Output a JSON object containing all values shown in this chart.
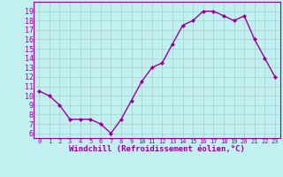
{
  "x": [
    0,
    1,
    2,
    3,
    4,
    5,
    6,
    7,
    8,
    9,
    10,
    11,
    12,
    13,
    14,
    15,
    16,
    17,
    18,
    19,
    20,
    21,
    22,
    23
  ],
  "y": [
    10.5,
    10.0,
    9.0,
    7.5,
    7.5,
    7.5,
    7.0,
    6.0,
    7.5,
    9.5,
    11.5,
    13.0,
    13.5,
    15.5,
    17.5,
    18.0,
    19.0,
    19.0,
    18.5,
    18.0,
    18.5,
    16.0,
    14.0,
    12.0
  ],
  "line_color": "#990099",
  "marker": "D",
  "markersize": 2,
  "linewidth": 1.0,
  "bg_color": "#c0f0f0",
  "grid_color": "#aacccc",
  "xlabel": "Windchill (Refroidissement éolien,°C)",
  "xlabel_color": "#990099",
  "tick_color": "#990099",
  "xlabel_fontsize": 6.5,
  "ytick_fontsize": 6.0,
  "xtick_fontsize": 5.0,
  "yticks": [
    6,
    7,
    8,
    9,
    10,
    11,
    12,
    13,
    14,
    15,
    16,
    17,
    18,
    19
  ],
  "xticks": [
    0,
    1,
    2,
    3,
    4,
    5,
    6,
    7,
    8,
    9,
    10,
    11,
    12,
    13,
    14,
    15,
    16,
    17,
    18,
    19,
    20,
    21,
    22,
    23
  ],
  "ylim": [
    5.5,
    20.0
  ],
  "xlim": [
    -0.5,
    23.5
  ]
}
